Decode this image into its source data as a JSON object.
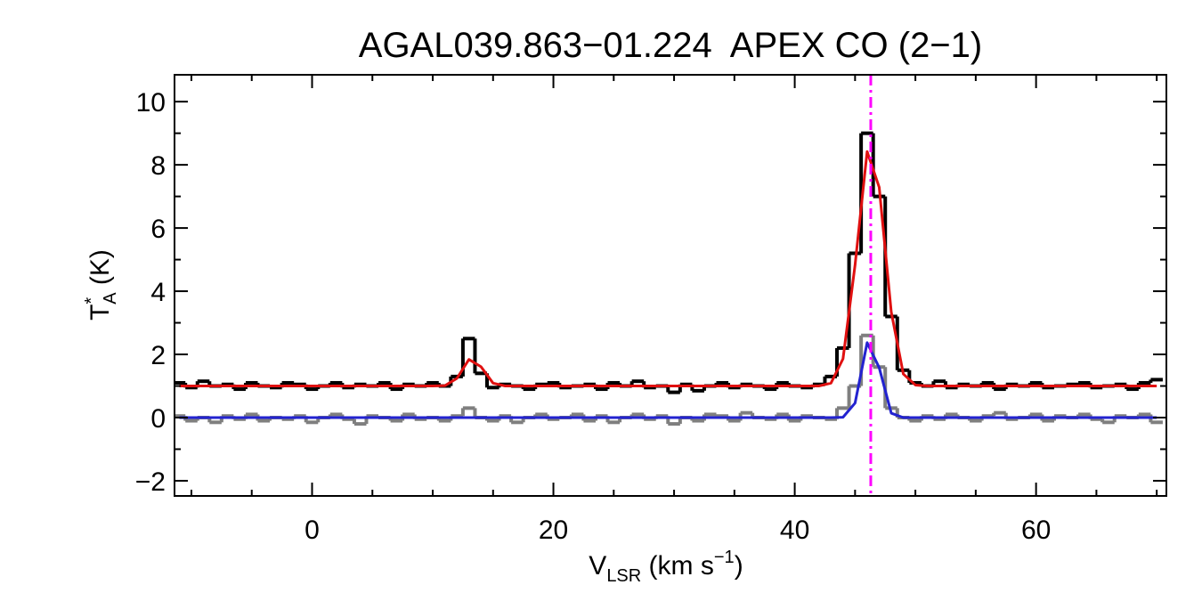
{
  "chart_data": {
    "type": "line",
    "title": "AGAL039.863−01.224  APEX CO (2−1)",
    "xlabel": [
      "V",
      "LSR",
      " (km s",
      "−1",
      ")"
    ],
    "ylabel": [
      "T",
      "*",
      "A",
      " (K)"
    ],
    "x": [
      -11,
      -10,
      -9,
      -8,
      -7,
      -6,
      -5,
      -4,
      -3,
      -2,
      -1,
      0,
      1,
      2,
      3,
      4,
      5,
      6,
      7,
      8,
      9,
      10,
      11,
      12,
      13,
      14,
      15,
      16,
      17,
      18,
      19,
      20,
      21,
      22,
      23,
      24,
      25,
      26,
      27,
      28,
      29,
      30,
      31,
      32,
      33,
      34,
      35,
      36,
      37,
      38,
      39,
      40,
      41,
      42,
      43,
      44,
      45,
      46,
      47,
      48,
      49,
      50,
      51,
      52,
      53,
      54,
      55,
      56,
      57,
      58,
      59,
      60,
      61,
      62,
      63,
      64,
      65,
      66,
      67,
      68,
      69,
      70
    ],
    "series": [
      {
        "style": "step",
        "color": "#000000",
        "values": [
          1.1,
          0.95,
          1.15,
          1.0,
          1.05,
          0.9,
          1.1,
          1.0,
          0.95,
          1.1,
          1.05,
          0.9,
          1.0,
          1.1,
          0.95,
          1.05,
          1.0,
          1.1,
          0.9,
          1.05,
          1.0,
          1.1,
          1.0,
          1.3,
          2.5,
          1.4,
          0.95,
          1.05,
          1.0,
          0.9,
          1.05,
          1.1,
          0.95,
          1.0,
          1.05,
          0.9,
          1.1,
          1.0,
          1.15,
          0.95,
          1.0,
          0.8,
          1.05,
          0.85,
          1.0,
          1.1,
          0.95,
          1.05,
          1.0,
          0.9,
          1.1,
          1.0,
          0.95,
          1.05,
          1.3,
          2.2,
          5.2,
          9.0,
          7.0,
          3.2,
          1.5,
          1.1,
          1.0,
          1.15,
          0.95,
          1.05,
          1.0,
          1.1,
          0.9,
          1.05,
          1.0,
          1.1,
          0.95,
          1.0,
          1.05,
          1.1,
          0.95,
          1.0,
          1.05,
          0.9,
          1.1,
          1.2
        ]
      },
      {
        "style": "step",
        "color": "#7f7f7f",
        "values": [
          0.05,
          -0.1,
          0.0,
          -0.15,
          0.05,
          -0.05,
          0.1,
          -0.1,
          0.0,
          -0.05,
          0.05,
          -0.15,
          0.0,
          0.1,
          -0.05,
          -0.2,
          0.05,
          0.0,
          -0.1,
          0.1,
          -0.05,
          0.0,
          -0.1,
          0.05,
          0.3,
          0.0,
          -0.1,
          0.05,
          -0.15,
          0.0,
          0.1,
          -0.05,
          0.0,
          0.1,
          -0.1,
          0.05,
          -0.15,
          0.0,
          0.1,
          -0.05,
          0.05,
          -0.2,
          0.0,
          -0.1,
          0.1,
          0.05,
          -0.1,
          0.15,
          0.0,
          -0.05,
          0.1,
          -0.1,
          0.05,
          0.0,
          -0.05,
          0.3,
          1.0,
          2.6,
          1.6,
          0.3,
          0.0,
          -0.1,
          0.05,
          -0.05,
          0.1,
          0.0,
          -0.1,
          0.05,
          0.15,
          -0.05,
          0.0,
          0.1,
          -0.1,
          0.05,
          0.0,
          0.1,
          -0.05,
          -0.15,
          0.05,
          0.0,
          0.1,
          -0.15
        ]
      },
      {
        "style": "line",
        "color": "#e01010",
        "values": [
          1,
          1,
          1,
          1,
          1,
          1,
          1,
          1,
          1,
          1,
          1,
          1,
          1,
          1,
          1,
          1,
          1,
          1,
          1,
          1,
          1,
          1,
          1.01,
          1.24,
          1.84,
          1.61,
          1.09,
          1,
          1,
          1,
          1,
          1,
          1,
          1,
          1,
          1,
          1,
          1,
          1,
          1,
          1,
          1,
          1,
          1,
          1,
          1,
          1,
          1,
          1,
          1,
          1,
          1,
          1,
          1,
          1.09,
          1.86,
          4.83,
          8.42,
          7.29,
          3.34,
          1.38,
          1.03,
          1,
          1,
          1,
          1,
          1,
          1,
          1,
          1,
          1,
          1,
          1,
          1,
          1,
          1,
          1,
          1,
          1,
          1,
          1,
          1
        ]
      },
      {
        "style": "line",
        "color": "#2323d0",
        "values": [
          0,
          0,
          0,
          0,
          0,
          0,
          0,
          0,
          0,
          0,
          0,
          0,
          0,
          0,
          0,
          0,
          0,
          0,
          0,
          0,
          0,
          0,
          0,
          0,
          0,
          0,
          0,
          0,
          0,
          0,
          0,
          0,
          0,
          0,
          0,
          0,
          0,
          0,
          0,
          0,
          0,
          0,
          0,
          0,
          0,
          0,
          0,
          0,
          0,
          0,
          0,
          0,
          0,
          0,
          0,
          0.01,
          0.46,
          2.37,
          1.58,
          0.14,
          0,
          0,
          0,
          0,
          0,
          0,
          0,
          0,
          0,
          0,
          0,
          0,
          0,
          0,
          0,
          0,
          0,
          0,
          0,
          0,
          0,
          0
        ]
      }
    ],
    "vline": {
      "x": 46.3,
      "color": "#ff00ff"
    },
    "xlim": [
      -11.4,
      70.8
    ],
    "ylim": [
      -2.48,
      10.85
    ],
    "xticks": [
      0,
      20,
      40,
      60
    ],
    "yticks": [
      {
        "value": -2,
        "label": "−2"
      },
      0,
      2,
      4,
      6,
      8,
      10
    ],
    "xminorticks": [
      -10,
      -5,
      5,
      10,
      15,
      25,
      30,
      35,
      45,
      50,
      55,
      65,
      70
    ],
    "yminorticks": [
      -1,
      1,
      3,
      5,
      7,
      9
    ]
  }
}
